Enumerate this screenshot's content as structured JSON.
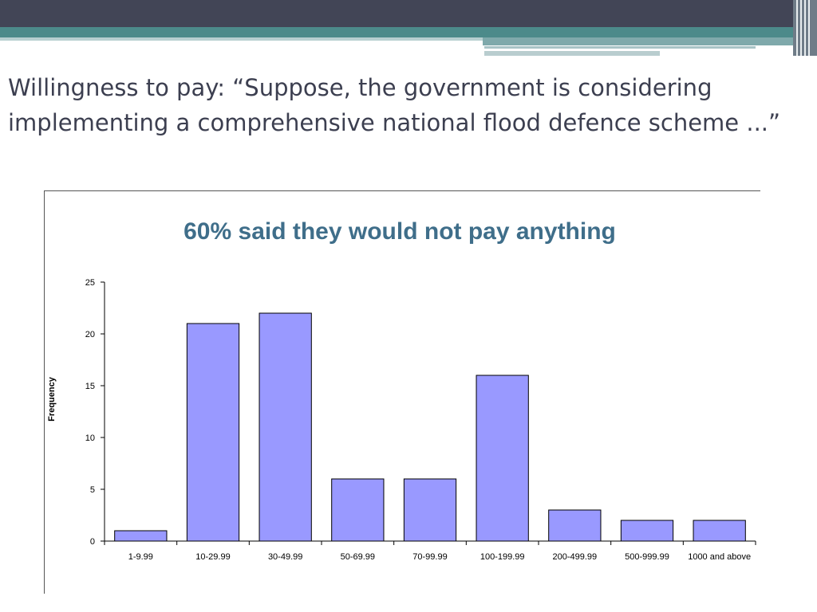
{
  "slide": {
    "title": "Willingness to pay: “Suppose, the government is considering implementing a comprehensive national flood defence scheme ...”"
  },
  "colors": {
    "header_dark": "#424556",
    "header_teal": "#4c8a8a",
    "bar_fill": "#9999ff",
    "chart_title": "#3f6e8a"
  },
  "chart_data": {
    "type": "bar",
    "title": "60% said they would not pay anything",
    "xlabel": "",
    "ylabel": "Frequency",
    "categories": [
      "1-9.99",
      "10-29.99",
      "30-49.99",
      "50-69.99",
      "70-99.99",
      "100-199.99",
      "200-499.99",
      "500-999.99",
      "1000 and above"
    ],
    "values": [
      1,
      21,
      22,
      6,
      6,
      16,
      3,
      2,
      2
    ],
    "ylim": [
      0,
      25
    ],
    "yticks": [
      0,
      5,
      10,
      15,
      20,
      25
    ],
    "grid": false,
    "legend": "none"
  }
}
